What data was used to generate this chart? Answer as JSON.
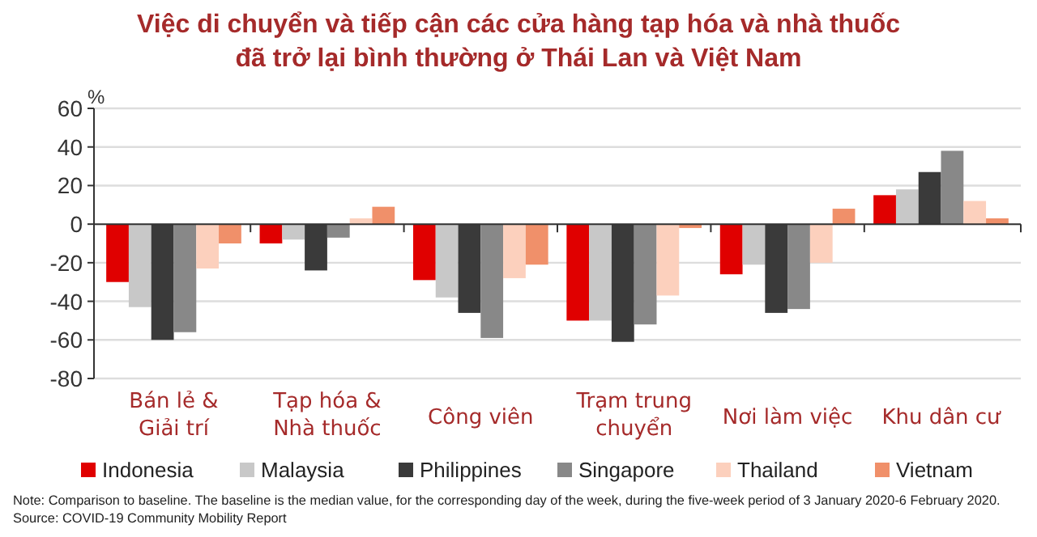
{
  "chart_data": {
    "type": "bar",
    "title": "Việc di chuyển và tiếp cận các cửa hàng tạp hóa và nhà thuốc\nđã trở lại bình thường ở Thái Lan và Việt Nam",
    "ylabel": "%",
    "categories": [
      "Bán lẻ &\nGiải trí",
      "Tạp hóa &\nNhà thuốc",
      "Công viên",
      "Trạm trung\nchuyển",
      "Nơi làm việc",
      "Khu dân cư"
    ],
    "series": [
      {
        "name": "Indonesia",
        "color": "#e00000",
        "values": [
          -30,
          -10,
          -29,
          -50,
          -26,
          15
        ]
      },
      {
        "name": "Malaysia",
        "color": "#c8c8c8",
        "values": [
          -43,
          -8,
          -38,
          -50,
          -21,
          18
        ]
      },
      {
        "name": "Philippines",
        "color": "#3a3a3a",
        "values": [
          -60,
          -24,
          -46,
          -61,
          -46,
          27
        ]
      },
      {
        "name": "Singapore",
        "color": "#888888",
        "values": [
          -56,
          -7,
          -59,
          -52,
          -44,
          38
        ]
      },
      {
        "name": "Thailand",
        "color": "#fcd0bd",
        "values": [
          -23,
          3,
          -28,
          -37,
          -20,
          12
        ]
      },
      {
        "name": "Vietnam",
        "color": "#f0906a",
        "values": [
          -10,
          9,
          -21,
          -2,
          8,
          3
        ]
      }
    ],
    "ylim": [
      -80,
      60
    ],
    "yticks": [
      -80,
      -60,
      -40,
      -20,
      0,
      20,
      40,
      60
    ],
    "grid": "y",
    "legend": "bottom",
    "annotations": [
      "Note: Comparison to baseline. The baseline is the median value, for the corresponding day of the week, during the five-week period of 3 January 2020-6 February 2020.",
      "Source: COVID-19 Community Mobility Report"
    ]
  }
}
